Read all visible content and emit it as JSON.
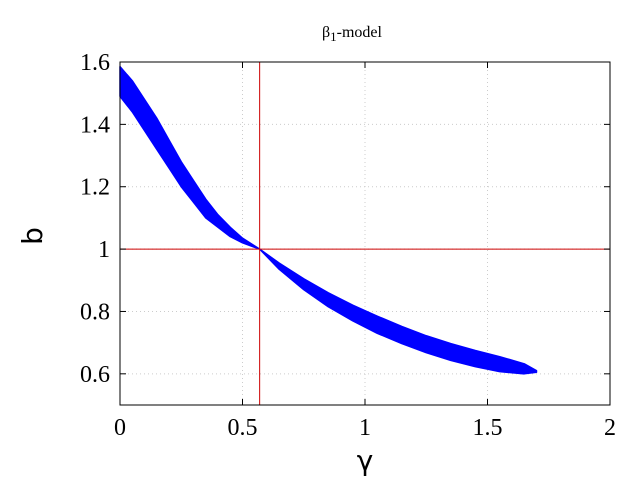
{
  "chart_data": {
    "type": "scatter",
    "title_main": "β",
    "title_sub": "1",
    "title_suffix": "-model",
    "xlabel": "γ",
    "ylabel": "b",
    "xlim": [
      0,
      2
    ],
    "ylim": [
      0.5,
      1.6
    ],
    "x_ticks": [
      0,
      0.5,
      1,
      1.5,
      2
    ],
    "x_tick_labels": [
      "0",
      "0.5",
      "1",
      "1.5",
      "2"
    ],
    "y_ticks": [
      0.6,
      0.8,
      1.0,
      1.2,
      1.4,
      1.6
    ],
    "y_tick_labels": [
      "0.6",
      "0.8",
      "1",
      "1.2",
      "1.4",
      "1.6"
    ],
    "grid": true,
    "reference_lines": {
      "x": 0.57,
      "y": 1.0,
      "color": "#cc0000"
    },
    "series": [
      {
        "color": "#0000ff",
        "upper": [
          [
            0.0,
            1.585
          ],
          [
            0.05,
            1.54
          ],
          [
            0.1,
            1.48
          ],
          [
            0.15,
            1.42
          ],
          [
            0.2,
            1.35
          ],
          [
            0.25,
            1.28
          ],
          [
            0.3,
            1.22
          ],
          [
            0.35,
            1.16
          ],
          [
            0.4,
            1.11
          ],
          [
            0.45,
            1.07
          ],
          [
            0.5,
            1.035
          ],
          [
            0.57,
            1.0
          ],
          [
            0.65,
            0.955
          ],
          [
            0.75,
            0.905
          ],
          [
            0.85,
            0.86
          ],
          [
            0.95,
            0.82
          ],
          [
            1.05,
            0.785
          ],
          [
            1.15,
            0.752
          ],
          [
            1.25,
            0.722
          ],
          [
            1.35,
            0.697
          ],
          [
            1.45,
            0.675
          ],
          [
            1.55,
            0.655
          ],
          [
            1.65,
            0.632
          ],
          [
            1.7,
            0.61
          ]
        ],
        "lower": [
          [
            0.0,
            1.49
          ],
          [
            0.05,
            1.44
          ],
          [
            0.1,
            1.38
          ],
          [
            0.15,
            1.32
          ],
          [
            0.2,
            1.26
          ],
          [
            0.25,
            1.2
          ],
          [
            0.3,
            1.15
          ],
          [
            0.35,
            1.1
          ],
          [
            0.4,
            1.07
          ],
          [
            0.45,
            1.04
          ],
          [
            0.5,
            1.02
          ],
          [
            0.57,
            1.0
          ],
          [
            0.65,
            0.935
          ],
          [
            0.75,
            0.87
          ],
          [
            0.85,
            0.815
          ],
          [
            0.95,
            0.77
          ],
          [
            1.05,
            0.73
          ],
          [
            1.15,
            0.697
          ],
          [
            1.25,
            0.668
          ],
          [
            1.35,
            0.643
          ],
          [
            1.45,
            0.623
          ],
          [
            1.55,
            0.607
          ],
          [
            1.65,
            0.6
          ],
          [
            1.7,
            0.605
          ]
        ]
      }
    ]
  }
}
